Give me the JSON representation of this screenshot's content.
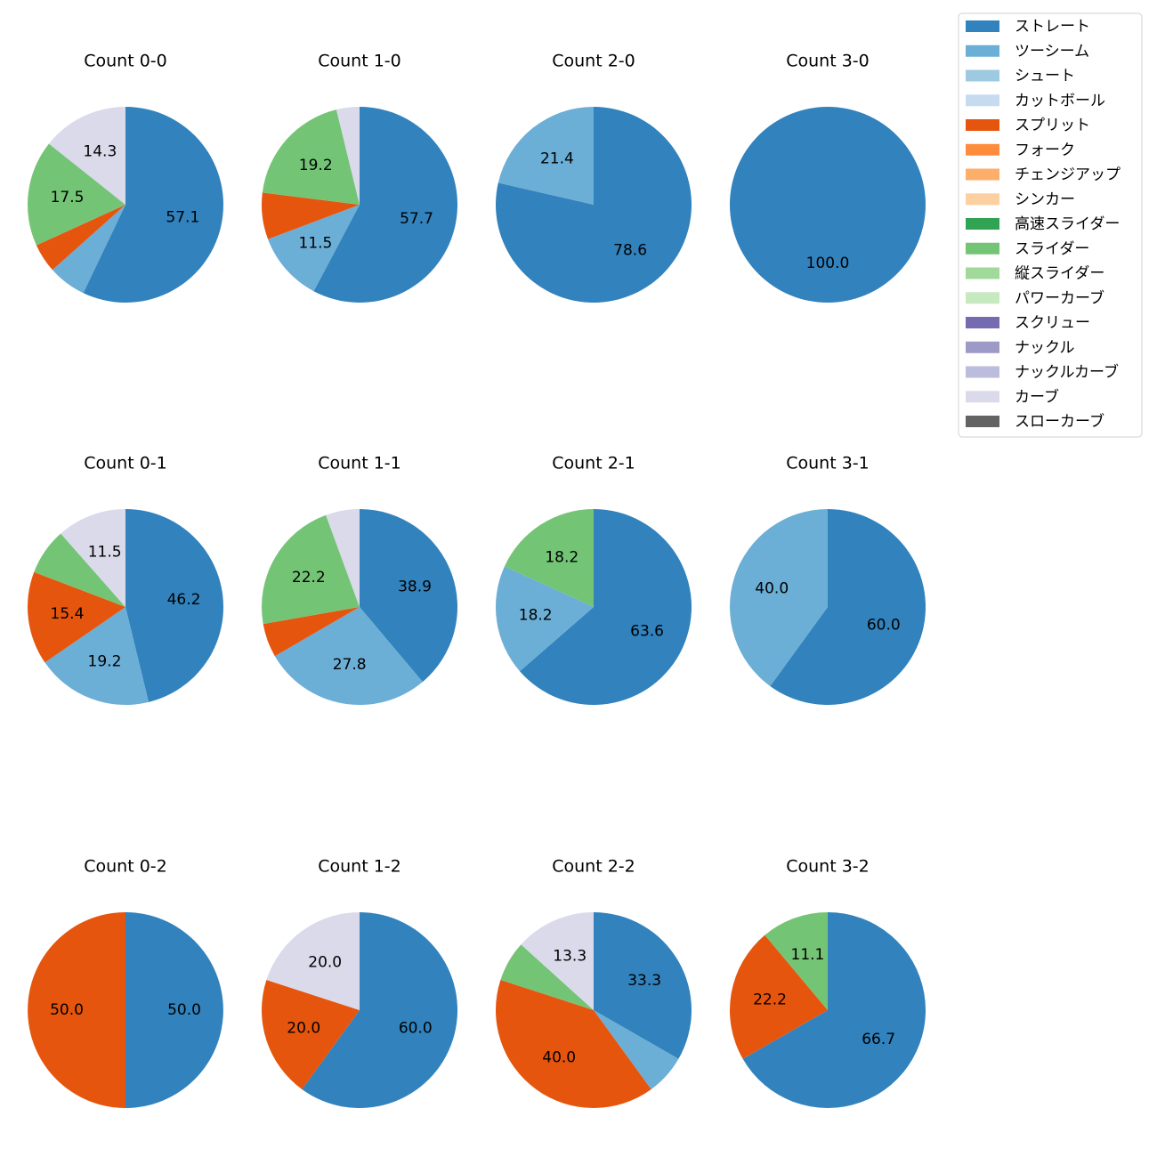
{
  "legend": [
    {
      "name": "ストレート",
      "color": "#3182bd"
    },
    {
      "name": "ツーシーム",
      "color": "#6baed6"
    },
    {
      "name": "シュート",
      "color": "#9ecae1"
    },
    {
      "name": "カットボール",
      "color": "#c6dbef"
    },
    {
      "name": "スプリット",
      "color": "#e6550d"
    },
    {
      "name": "フォーク",
      "color": "#fd8d3c"
    },
    {
      "name": "チェンジアップ",
      "color": "#fdae6b"
    },
    {
      "name": "シンカー",
      "color": "#fdd0a2"
    },
    {
      "name": "高速スライダー",
      "color": "#31a354"
    },
    {
      "name": "スライダー",
      "color": "#74c476"
    },
    {
      "name": "縦スライダー",
      "color": "#a1d99b"
    },
    {
      "name": "パワーカーブ",
      "color": "#c7e9c0"
    },
    {
      "name": "スクリュー",
      "color": "#756bb1"
    },
    {
      "name": "ナックル",
      "color": "#9e9ac8"
    },
    {
      "name": "ナックルカーブ",
      "color": "#bcbddc"
    },
    {
      "name": "カーブ",
      "color": "#dadaeb"
    },
    {
      "name": "スローカーブ",
      "color": "#636363"
    }
  ],
  "chart_data": [
    {
      "type": "pie",
      "title": "Count 0-0",
      "categories": [
        "ストレート",
        "ツーシーム",
        "スプリット",
        "スライダー",
        "カーブ"
      ],
      "values": [
        57.1,
        6.3,
        4.8,
        17.5,
        14.3
      ],
      "value_labels": [
        "57.1",
        null,
        null,
        "17.5",
        "14.3"
      ]
    },
    {
      "type": "pie",
      "title": "Count 1-0",
      "categories": [
        "ストレート",
        "ツーシーム",
        "スプリット",
        "スライダー",
        "カーブ"
      ],
      "values": [
        57.7,
        11.5,
        7.7,
        19.2,
        3.8
      ],
      "value_labels": [
        "57.7",
        "11.5",
        null,
        "19.2",
        null
      ]
    },
    {
      "type": "pie",
      "title": "Count 2-0",
      "categories": [
        "ストレート",
        "ツーシーム"
      ],
      "values": [
        78.6,
        21.4
      ],
      "value_labels": [
        "78.6",
        "21.4"
      ]
    },
    {
      "type": "pie",
      "title": "Count 3-0",
      "categories": [
        "ストレート"
      ],
      "values": [
        100
      ],
      "value_labels": [
        "100.0"
      ]
    },
    {
      "type": "pie",
      "title": "Count 0-1",
      "categories": [
        "ストレート",
        "ツーシーム",
        "スプリット",
        "スライダー",
        "カーブ"
      ],
      "values": [
        46.2,
        19.2,
        15.4,
        7.7,
        11.5
      ],
      "value_labels": [
        "46.2",
        "19.2",
        "15.4",
        null,
        "11.5"
      ]
    },
    {
      "type": "pie",
      "title": "Count 1-1",
      "categories": [
        "ストレート",
        "ツーシーム",
        "スプリット",
        "スライダー",
        "カーブ"
      ],
      "values": [
        38.9,
        27.8,
        5.6,
        22.2,
        5.6
      ],
      "value_labels": [
        "38.9",
        "27.8",
        null,
        "22.2",
        null
      ]
    },
    {
      "type": "pie",
      "title": "Count 2-1",
      "categories": [
        "ストレート",
        "ツーシーム",
        "スライダー"
      ],
      "values": [
        63.6,
        18.2,
        18.2
      ],
      "value_labels": [
        "63.6",
        "18.2",
        "18.2"
      ]
    },
    {
      "type": "pie",
      "title": "Count 3-1",
      "categories": [
        "ストレート",
        "ツーシーム"
      ],
      "values": [
        60,
        40
      ],
      "value_labels": [
        "60.0",
        "40.0"
      ]
    },
    {
      "type": "pie",
      "title": "Count 0-2",
      "categories": [
        "ストレート",
        "スプリット"
      ],
      "values": [
        50,
        50
      ],
      "value_labels": [
        "50.0",
        "50.0"
      ]
    },
    {
      "type": "pie",
      "title": "Count 1-2",
      "categories": [
        "ストレート",
        "スプリット",
        "カーブ"
      ],
      "values": [
        60,
        20,
        20
      ],
      "value_labels": [
        "60.0",
        "20.0",
        "20.0"
      ]
    },
    {
      "type": "pie",
      "title": "Count 2-2",
      "categories": [
        "ストレート",
        "ツーシーム",
        "スプリット",
        "スライダー",
        "カーブ"
      ],
      "values": [
        33.3,
        6.7,
        40,
        6.7,
        13.3
      ],
      "value_labels": [
        "33.3",
        null,
        "40.0",
        null,
        "13.3"
      ]
    },
    {
      "type": "pie",
      "title": "Count 3-2",
      "categories": [
        "ストレート",
        "スプリット",
        "スライダー"
      ],
      "values": [
        66.7,
        22.2,
        11.1
      ],
      "value_labels": [
        "66.7",
        "22.2",
        "11.1"
      ]
    }
  ]
}
